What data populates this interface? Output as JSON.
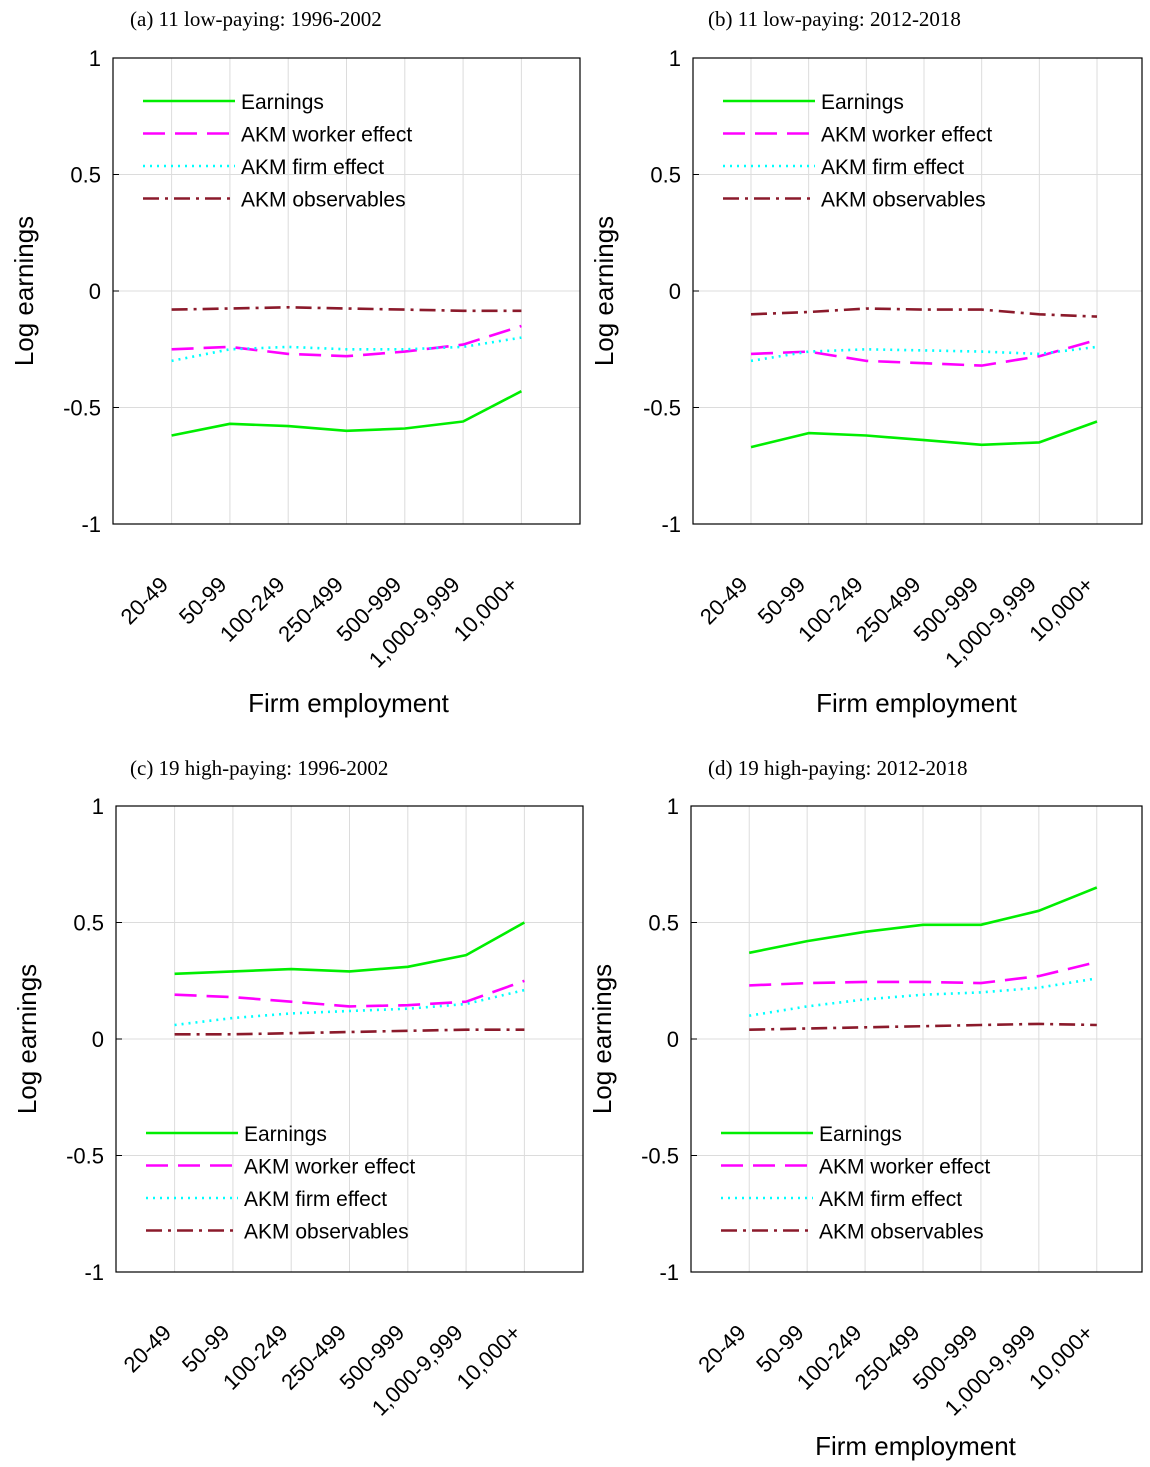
{
  "chart_data": [
    {
      "type": "line",
      "title": "(a) 11 low-paying: 1996-2002",
      "xlabel": "Firm employment",
      "ylabel": "Log earnings",
      "categories": [
        "20-49",
        "50-99",
        "100-249",
        "250-499",
        "500-999",
        "1,000-9,999",
        "10,000+"
      ],
      "ylim": [
        -1,
        1
      ],
      "yticks": [
        "1",
        "0.5",
        "0",
        "-0.5",
        "-1"
      ],
      "grid": true,
      "legend": "top-left",
      "series": [
        {
          "name": "Earnings",
          "values": [
            -0.62,
            -0.57,
            -0.58,
            -0.6,
            -0.59,
            -0.56,
            -0.43
          ]
        },
        {
          "name": "AKM worker effect",
          "values": [
            -0.25,
            -0.24,
            -0.27,
            -0.28,
            -0.26,
            -0.23,
            -0.15
          ]
        },
        {
          "name": "AKM firm effect",
          "values": [
            -0.3,
            -0.25,
            -0.24,
            -0.25,
            -0.25,
            -0.24,
            -0.2
          ]
        },
        {
          "name": "AKM observables",
          "values": [
            -0.08,
            -0.075,
            -0.07,
            -0.075,
            -0.08,
            -0.085,
            -0.085
          ]
        }
      ]
    },
    {
      "type": "line",
      "title": "(b) 11 low-paying: 2012-2018",
      "xlabel": "Firm employment",
      "ylabel": "Log earnings",
      "categories": [
        "20-49",
        "50-99",
        "100-249",
        "250-499",
        "500-999",
        "1,000-9,999",
        "10,000+"
      ],
      "ylim": [
        -1,
        1
      ],
      "yticks": [
        "1",
        "0.5",
        "0",
        "-0.5",
        "-1"
      ],
      "grid": true,
      "legend": "top-left",
      "series": [
        {
          "name": "Earnings",
          "values": [
            -0.67,
            -0.61,
            -0.62,
            -0.64,
            -0.66,
            -0.65,
            -0.56
          ]
        },
        {
          "name": "AKM worker effect",
          "values": [
            -0.27,
            -0.26,
            -0.3,
            -0.31,
            -0.32,
            -0.28,
            -0.21
          ]
        },
        {
          "name": "AKM firm effect",
          "values": [
            -0.3,
            -0.26,
            -0.25,
            -0.255,
            -0.26,
            -0.27,
            -0.24
          ]
        },
        {
          "name": "AKM observables",
          "values": [
            -0.1,
            -0.09,
            -0.075,
            -0.08,
            -0.08,
            -0.1,
            -0.11
          ]
        }
      ]
    },
    {
      "type": "line",
      "title": "(c) 19 high-paying: 1996-2002",
      "xlabel": "",
      "ylabel": "Log earnings",
      "categories": [
        "20-49",
        "50-99",
        "100-249",
        "250-499",
        "500-999",
        "1,000-9,999",
        "10,000+"
      ],
      "ylim": [
        -1,
        1
      ],
      "yticks": [
        "1",
        "0.5",
        "0",
        "-0.5",
        "-1"
      ],
      "grid": true,
      "legend": "bottom-left",
      "series": [
        {
          "name": "Earnings",
          "values": [
            0.28,
            0.29,
            0.3,
            0.29,
            0.31,
            0.36,
            0.5
          ]
        },
        {
          "name": "AKM worker effect",
          "values": [
            0.19,
            0.18,
            0.16,
            0.14,
            0.145,
            0.16,
            0.25
          ]
        },
        {
          "name": "AKM firm effect",
          "values": [
            0.06,
            0.09,
            0.11,
            0.12,
            0.13,
            0.15,
            0.21
          ]
        },
        {
          "name": "AKM observables",
          "values": [
            0.02,
            0.02,
            0.025,
            0.03,
            0.035,
            0.04,
            0.04
          ]
        }
      ]
    },
    {
      "type": "line",
      "title": "(d) 19 high-paying: 2012-2018",
      "xlabel": "Firm employment",
      "ylabel": "Log earnings",
      "categories": [
        "20-49",
        "50-99",
        "100-249",
        "250-499",
        "500-999",
        "1,000-9,999",
        "10,000+"
      ],
      "ylim": [
        -1,
        1
      ],
      "yticks": [
        "1",
        "0.5",
        "0",
        "-0.5",
        "-1"
      ],
      "grid": true,
      "legend": "bottom-left",
      "series": [
        {
          "name": "Earnings",
          "values": [
            0.37,
            0.42,
            0.46,
            0.49,
            0.49,
            0.55,
            0.65
          ]
        },
        {
          "name": "AKM worker effect",
          "values": [
            0.23,
            0.24,
            0.245,
            0.245,
            0.24,
            0.27,
            0.33
          ]
        },
        {
          "name": "AKM firm effect",
          "values": [
            0.1,
            0.14,
            0.17,
            0.19,
            0.2,
            0.22,
            0.26
          ]
        },
        {
          "name": "AKM observables",
          "values": [
            0.04,
            0.045,
            0.05,
            0.055,
            0.06,
            0.065,
            0.06
          ]
        }
      ]
    }
  ],
  "series_styles": [
    {
      "color": "#00ee00",
      "dash": "solid"
    },
    {
      "color": "#ff00ff",
      "dash": "dashed"
    },
    {
      "color": "#00ffff",
      "dash": "dotted"
    },
    {
      "color": "#8b1a2b",
      "dash": "dash-dot"
    }
  ]
}
